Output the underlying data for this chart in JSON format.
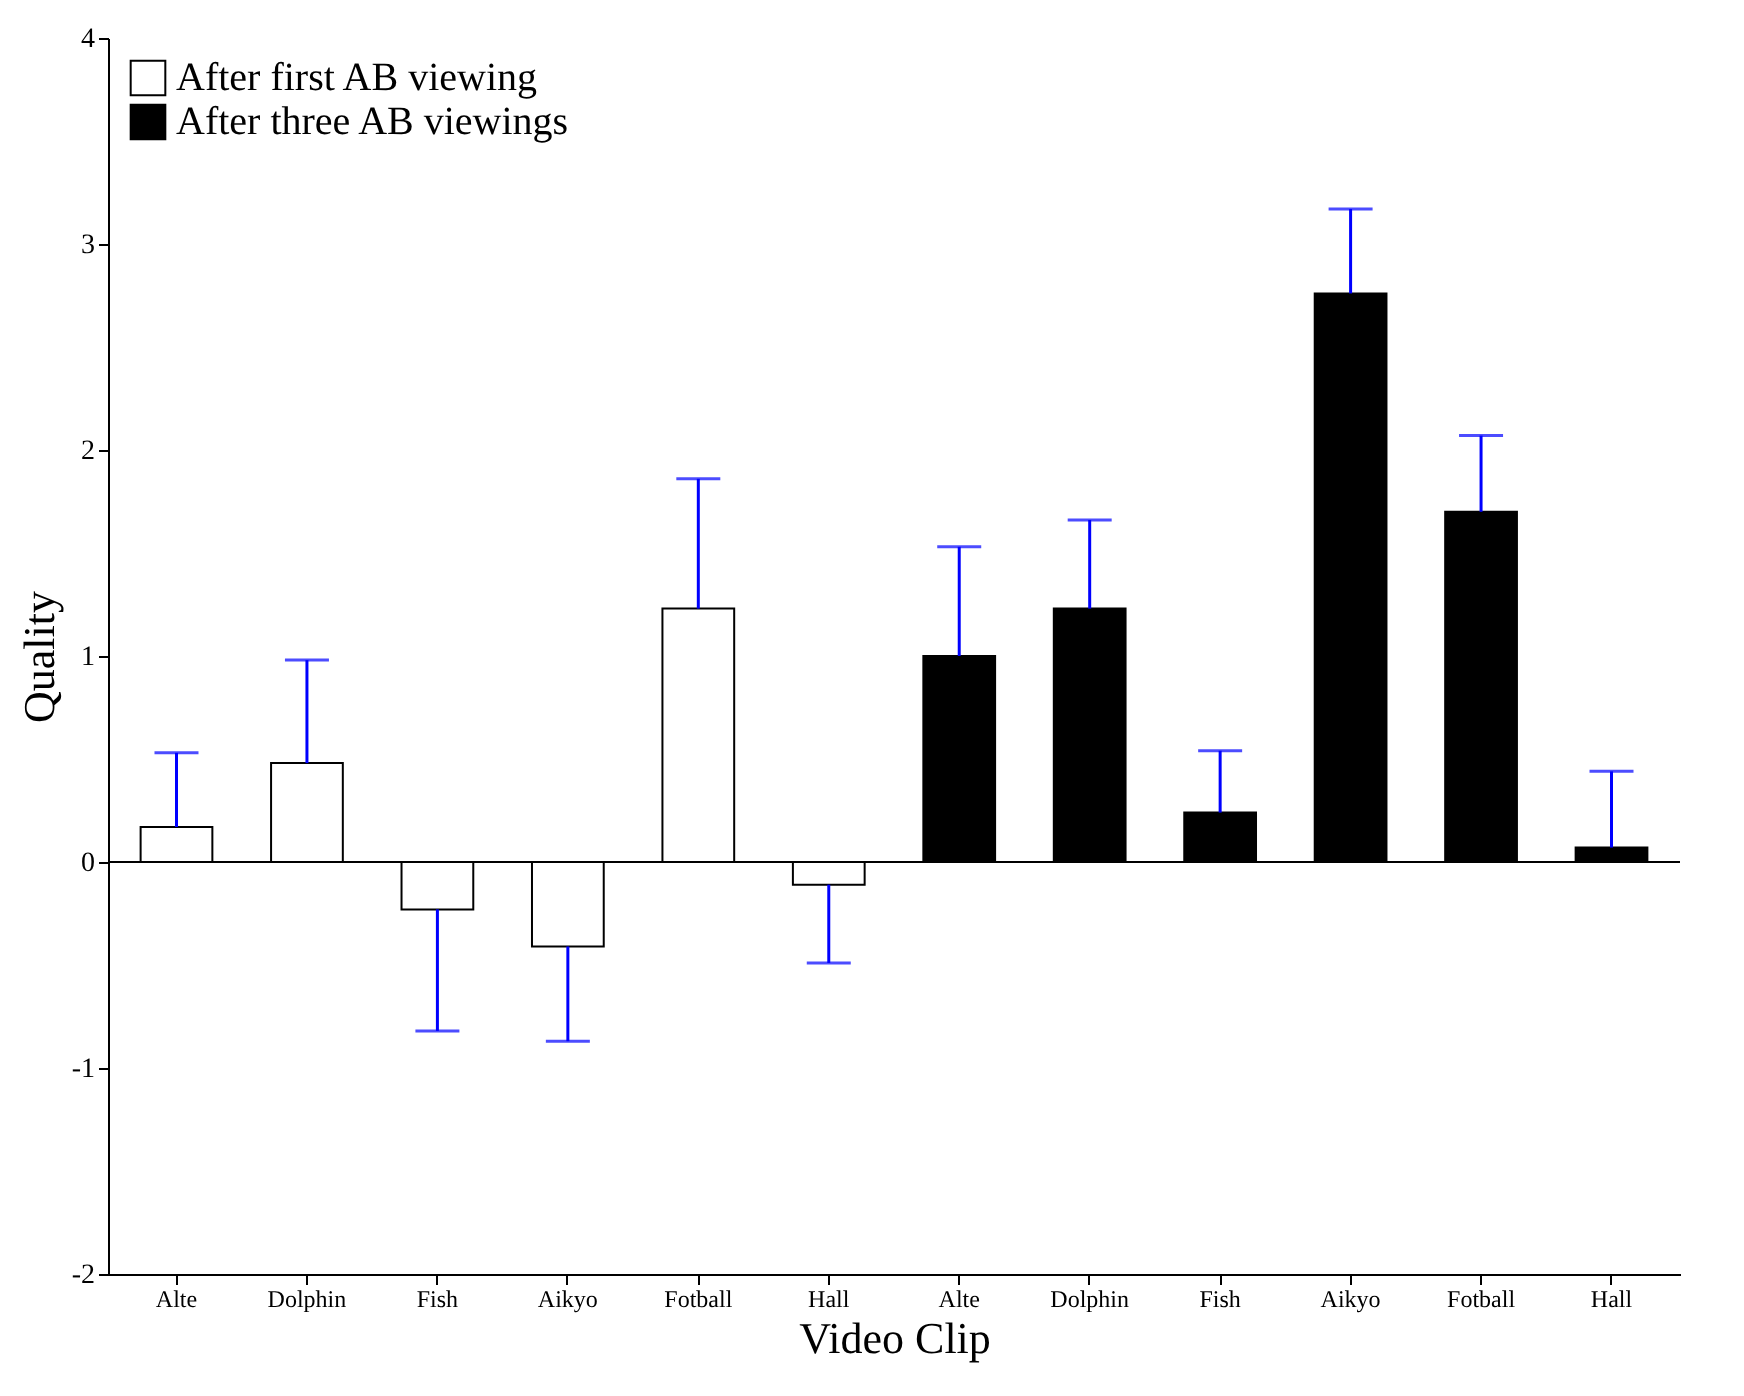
{
  "chart_data": {
    "type": "bar",
    "xlabel": "Video Clip",
    "ylabel": "Quality",
    "categories": [
      "Alte",
      "Dolphin",
      "Fish",
      "Aikyo",
      "Fotball",
      "Hall",
      "Alte",
      "Dolphin",
      "Fish",
      "Aikyo",
      "Fotball",
      "Hall"
    ],
    "series": [
      {
        "name": "After first AB viewing",
        "color": "#ffffff",
        "values": [
          0.17,
          0.48,
          -0.23,
          -0.41,
          1.23,
          -0.11,
          null,
          null,
          null,
          null,
          null,
          null
        ],
        "errors": [
          [
            0.17,
            0.53
          ],
          [
            0.48,
            0.98
          ],
          [
            -0.82,
            -0.23
          ],
          [
            -0.87,
            -0.41
          ],
          [
            1.23,
            1.86
          ],
          [
            -0.49,
            -0.11
          ],
          null,
          null,
          null,
          null,
          null,
          null
        ]
      },
      {
        "name": "After three AB viewings",
        "color": "#000000",
        "values": [
          null,
          null,
          null,
          null,
          null,
          null,
          1.0,
          1.23,
          0.24,
          2.76,
          1.7,
          0.07
        ],
        "errors": [
          null,
          null,
          null,
          null,
          null,
          null,
          [
            1.0,
            1.53
          ],
          [
            1.23,
            1.66
          ],
          [
            0.24,
            0.54
          ],
          [
            2.76,
            3.17
          ],
          [
            1.7,
            2.07
          ],
          [
            0.07,
            0.44
          ]
        ]
      }
    ],
    "ylim": [
      -2,
      4
    ],
    "yticks": [
      -2,
      -1,
      0,
      1,
      2,
      3,
      4
    ],
    "ref_lines": [
      {
        "axis": "y",
        "value": 0
      }
    ],
    "legend": "top left",
    "grid": false
  }
}
